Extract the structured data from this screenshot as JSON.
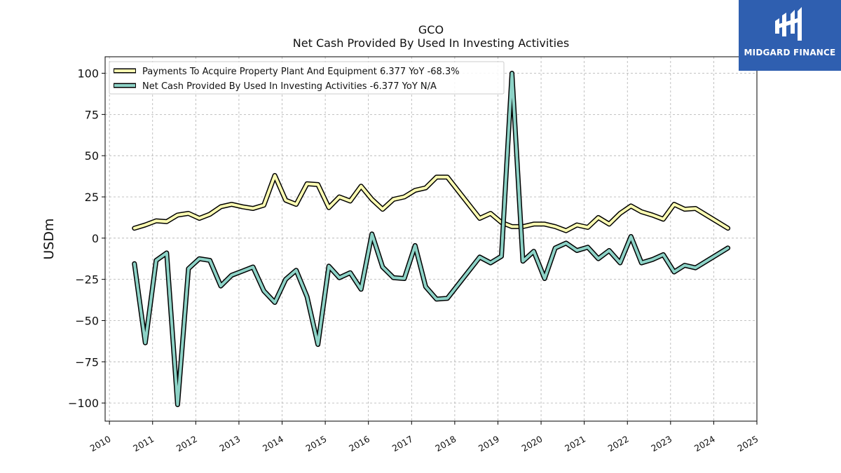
{
  "header": {
    "ticker": "GCO",
    "subtitle": "Net Cash Provided By Used In Investing Activities"
  },
  "logo": {
    "text": "MIDGARD FINANCE",
    "bg_color": "#2f5fb0"
  },
  "chart_data": {
    "type": "line",
    "ylabel": "USDm",
    "xlim": [
      2009.9,
      2025.0
    ],
    "ylim": [
      -111,
      110
    ],
    "yticks": [
      100,
      75,
      50,
      25,
      0,
      -25,
      -50,
      -75,
      -100
    ],
    "ytick_labels": [
      "100",
      "75",
      "50",
      "25",
      "0",
      "−25",
      "−50",
      "−75",
      "−100"
    ],
    "xticks": [
      2010,
      2011,
      2012,
      2013,
      2014,
      2015,
      2016,
      2017,
      2018,
      2019,
      2020,
      2021,
      2022,
      2023,
      2024,
      2025
    ],
    "xtick_labels": [
      "2010",
      "2011",
      "2012",
      "2013",
      "2014",
      "2015",
      "2016",
      "2017",
      "2018",
      "2019",
      "2020",
      "2021",
      "2022",
      "2023",
      "2024",
      "2025"
    ],
    "grid": true,
    "legend_position": "top-left",
    "series": [
      {
        "name": "Payments To Acquire Property Plant And Equipment  6.377 YoY -68.3%",
        "color": "#ffffb3",
        "x": [
          "2010-07-31",
          "2010-10-31",
          "2011-01-31",
          "2011-04-30",
          "2011-07-31",
          "2011-10-31",
          "2012-01-31",
          "2012-04-30",
          "2012-07-31",
          "2012-10-31",
          "2013-01-31",
          "2013-04-30",
          "2013-07-31",
          "2013-10-31",
          "2014-01-31",
          "2014-04-30",
          "2014-07-31",
          "2014-10-31",
          "2015-01-31",
          "2015-04-30",
          "2015-07-31",
          "2015-10-31",
          "2016-01-31",
          "2016-04-30",
          "2016-07-31",
          "2016-10-31",
          "2017-01-31",
          "2017-04-30",
          "2017-07-31",
          "2017-10-31",
          "2018-07-31",
          "2018-10-31",
          "2019-01-31",
          "2019-04-30",
          "2019-07-31",
          "2019-10-31",
          "2020-01-31",
          "2020-04-30",
          "2020-07-31",
          "2020-10-31",
          "2021-01-31",
          "2021-04-30",
          "2021-07-31",
          "2021-10-31",
          "2022-01-31",
          "2022-04-30",
          "2022-07-31",
          "2022-10-31",
          "2023-01-31",
          "2023-04-30",
          "2023-07-31",
          "2024-04-30"
        ],
        "values": [
          6,
          8,
          10.5,
          10,
          14,
          15,
          12,
          14.5,
          19,
          20.5,
          19,
          18,
          20,
          38,
          23,
          20.5,
          33,
          32.5,
          18.5,
          25,
          22.5,
          31.5,
          23.5,
          17.5,
          23.5,
          25,
          29,
          30.5,
          37,
          37,
          12,
          15,
          9.5,
          7,
          7,
          8.5,
          8.5,
          7,
          4.5,
          8,
          6.5,
          12.5,
          8.5,
          15,
          19.5,
          16,
          14,
          11.5,
          20.5,
          17.5,
          18,
          6
        ]
      },
      {
        "name": "Net Cash Provided By Used In Investing Activities  -6.377 YoY N/A",
        "color": "#8dd3c7",
        "x": [
          "2010-07-31",
          "2010-10-31",
          "2011-01-31",
          "2011-04-30",
          "2011-07-31",
          "2011-10-31",
          "2012-01-31",
          "2012-04-30",
          "2012-07-31",
          "2012-10-31",
          "2013-01-31",
          "2013-04-30",
          "2013-07-31",
          "2013-10-31",
          "2014-01-31",
          "2014-04-30",
          "2014-07-31",
          "2014-10-31",
          "2015-01-31",
          "2015-04-30",
          "2015-07-31",
          "2015-10-31",
          "2016-01-31",
          "2016-04-30",
          "2016-07-31",
          "2016-10-31",
          "2017-01-31",
          "2017-04-30",
          "2017-07-31",
          "2017-10-31",
          "2018-07-31",
          "2018-10-31",
          "2019-01-31",
          "2019-04-30",
          "2019-07-31",
          "2019-10-31",
          "2020-01-31",
          "2020-04-30",
          "2020-07-31",
          "2020-10-31",
          "2021-01-31",
          "2021-04-30",
          "2021-07-31",
          "2021-10-31",
          "2022-01-31",
          "2022-04-30",
          "2022-07-31",
          "2022-10-31",
          "2023-01-31",
          "2023-04-30",
          "2023-07-31",
          "2024-04-30"
        ],
        "values": [
          -15.5,
          -63.5,
          -13.5,
          -9,
          -101,
          -18.5,
          -12.5,
          -13.5,
          -29,
          -22.5,
          -20,
          -17.5,
          -32,
          -39,
          -25,
          -19.5,
          -35.5,
          -64.5,
          -17,
          -24,
          -21,
          -31,
          2.5,
          -17.5,
          -24,
          -24.5,
          -4.5,
          -29.5,
          -37,
          -36.5,
          -11.5,
          -15,
          -11,
          100,
          -14,
          -8,
          -24.5,
          -6,
          -3,
          -7.5,
          -5.5,
          -12.5,
          -7.5,
          -15,
          1,
          -15,
          -13,
          -10,
          -20.5,
          -16.5,
          -18,
          -6
        ]
      }
    ]
  }
}
